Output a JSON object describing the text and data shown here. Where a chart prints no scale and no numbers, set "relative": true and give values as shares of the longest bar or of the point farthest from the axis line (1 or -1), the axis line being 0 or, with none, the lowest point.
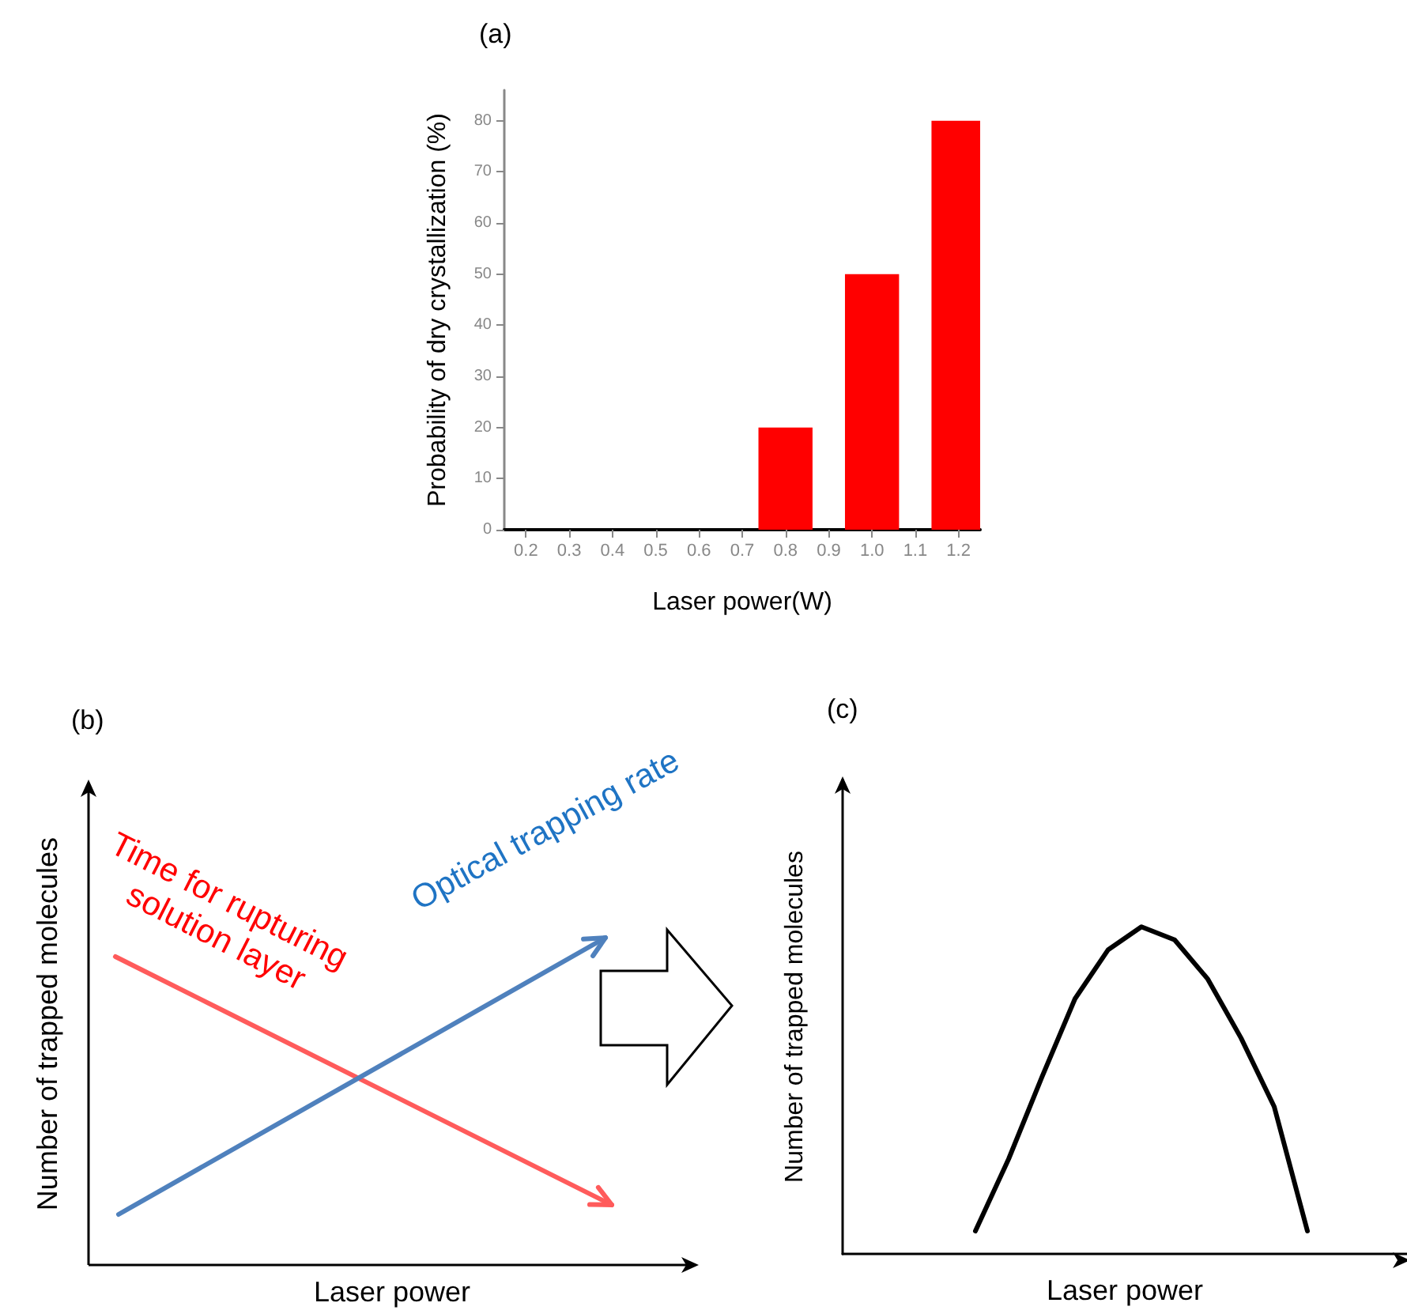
{
  "chart_data": [
    {
      "type": "bar",
      "title": "(a)",
      "xlabel": "Laser power(W)",
      "ylabel": "Probability of dry crystallization (%)",
      "categories": [
        "0.2",
        "0.3",
        "0.4",
        "0.5",
        "0.6",
        "0.7",
        "0.8",
        "0.9",
        "1.0",
        "1.1",
        "1.2"
      ],
      "values": [
        null,
        null,
        null,
        null,
        null,
        null,
        20,
        null,
        50,
        null,
        80
      ],
      "color": "#ff0000",
      "ylim": [
        0,
        86
      ],
      "yticks": [
        0,
        10,
        20,
        30,
        40,
        50,
        60,
        70,
        80
      ],
      "grid": false
    },
    {
      "type": "other",
      "title": "(b)",
      "xlabel": "Laser power",
      "ylabel": "Number of trapped molecules",
      "annotations": [
        "Time for rupturing solution layer",
        "Optical trapping rate"
      ]
    },
    {
      "type": "line",
      "title": "(c)",
      "xlabel": "Laser power",
      "ylabel": "Number of trapped molecules",
      "relative": true,
      "categories": [
        null,
        null,
        null,
        null,
        null,
        null,
        null,
        null,
        null,
        null,
        null,
        null,
        null,
        null,
        null,
        null,
        null,
        null
      ],
      "series": [
        {
          "color": "#000000",
          "values": [
            null,
            null,
            null,
            null,
            0.07,
            0.29,
            0.54,
            0.78,
            0.93,
            1,
            0.96,
            0.84,
            0.66,
            0.45,
            0.07,
            null,
            null,
            null
          ]
        }
      ],
      "grid": false,
      "marker": "none",
      "line_style": "solid"
    }
  ]
}
